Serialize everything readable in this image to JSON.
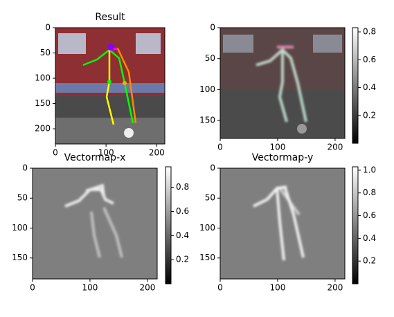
{
  "chart_data": [
    {
      "type": "image",
      "title": "Result",
      "xlim": [
        0,
        216
      ],
      "ylim": [
        230,
        0
      ],
      "xticks": [
        0,
        100,
        200
      ],
      "yticks": [
        0,
        50,
        100,
        150,
        200
      ]
    },
    {
      "type": "image",
      "xlim": [
        0,
        217
      ],
      "ylim": [
        179,
        0
      ],
      "xticks": [
        0,
        100,
        200
      ],
      "yticks": [
        0,
        50,
        100,
        150
      ],
      "clim": [
        0,
        0.83
      ],
      "cticks": [
        0.2,
        0.4,
        0.6,
        0.8
      ]
    },
    {
      "type": "image",
      "title": "Vectormap-x",
      "xlim": [
        0,
        217
      ],
      "ylim": [
        185,
        0
      ],
      "xticks": [
        0,
        100,
        200
      ],
      "yticks": [
        0,
        50,
        100,
        150
      ],
      "clim": [
        0,
        0.97
      ],
      "cticks": [
        0.2,
        0.4,
        0.6,
        0.8
      ]
    },
    {
      "type": "image",
      "title": "Vectormap-y",
      "xlim": [
        0,
        217
      ],
      "ylim": [
        185,
        0
      ],
      "xticks": [
        0,
        100,
        200
      ],
      "yticks": [
        0,
        50,
        100,
        150
      ],
      "clim": [
        0,
        1.03
      ],
      "cticks": [
        0.2,
        0.4,
        0.6,
        0.8,
        {
          "value": 1,
          "label": "1.0"
        }
      ]
    }
  ]
}
